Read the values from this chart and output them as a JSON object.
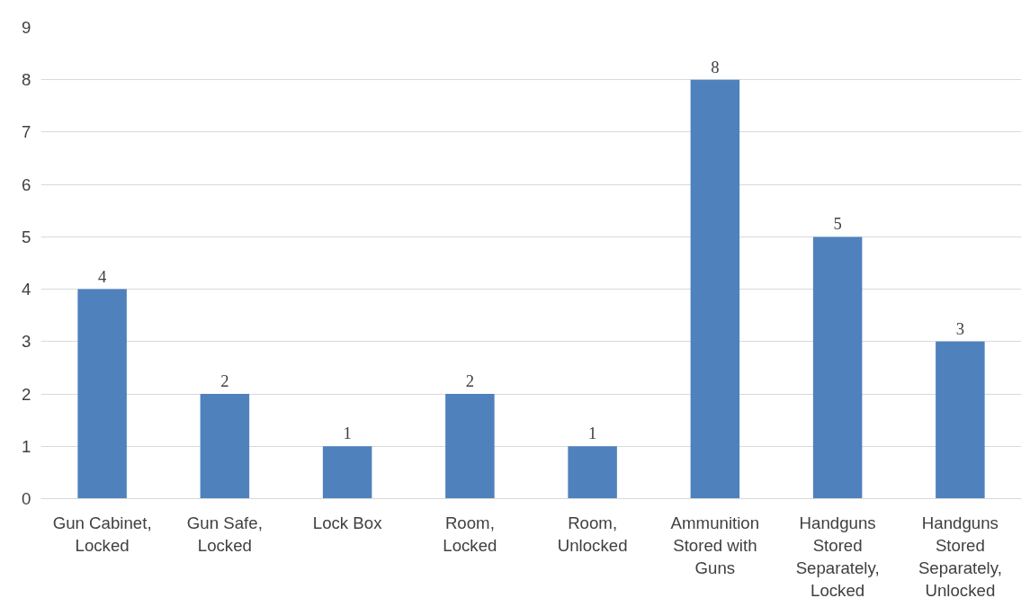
{
  "chart_data": {
    "type": "bar",
    "categories": [
      "Gun Cabinet,\nLocked",
      "Gun Safe,\nLocked",
      "Lock Box",
      "Room,\nLocked",
      "Room,\nUnlocked",
      "Ammunition\nStored with\nGuns",
      "Handguns\nStored\nSeparately,\nLocked",
      "Handguns\nStored\nSeparately,\nUnlocked"
    ],
    "values": [
      4,
      2,
      1,
      2,
      1,
      8,
      5,
      3
    ],
    "color": "#4f81bd",
    "ylim": [
      0,
      9
    ],
    "yticks": [
      0,
      1,
      2,
      3,
      4,
      5,
      6,
      7,
      8,
      9
    ],
    "grid": "y",
    "data_labels": true
  }
}
